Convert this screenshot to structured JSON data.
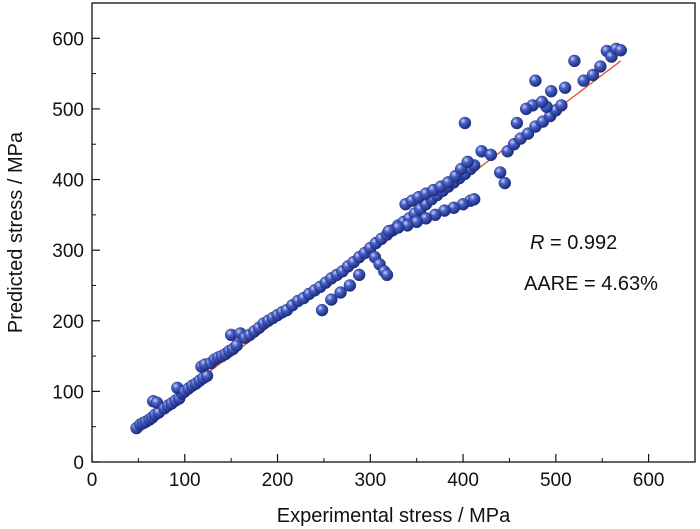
{
  "chart_data": {
    "type": "scatter",
    "title": "",
    "xlabel": "Experimental stress / MPa",
    "ylabel": "Predicted stress / MPa",
    "xlim": [
      0,
      650
    ],
    "ylim": [
      0,
      650
    ],
    "x_ticks": [
      0,
      100,
      200,
      300,
      400,
      500,
      600
    ],
    "y_ticks": [
      0,
      100,
      200,
      300,
      400,
      500,
      600
    ],
    "grid": false,
    "colors": {
      "points": "#2a3f9e",
      "fit_line": "#e8553a"
    },
    "annotations": [
      {
        "symbol": "R",
        "text": " = 0.992"
      },
      {
        "text": "AARE = 4.63%"
      }
    ],
    "series": [
      {
        "points": [
          [
            48,
            48
          ],
          [
            52,
            53
          ],
          [
            55,
            55
          ],
          [
            58,
            57
          ],
          [
            62,
            60
          ],
          [
            65,
            63
          ],
          [
            68,
            67
          ],
          [
            72,
            70
          ],
          [
            66,
            86
          ],
          [
            70,
            84
          ],
          [
            78,
            76
          ],
          [
            82,
            80
          ],
          [
            86,
            83
          ],
          [
            90,
            87
          ],
          [
            94,
            90
          ],
          [
            97,
            97
          ],
          [
            92,
            105
          ],
          [
            100,
            100
          ],
          [
            104,
            104
          ],
          [
            108,
            108
          ],
          [
            112,
            111
          ],
          [
            116,
            115
          ],
          [
            120,
            119
          ],
          [
            124,
            122
          ],
          [
            118,
            135
          ],
          [
            122,
            138
          ],
          [
            128,
            140
          ],
          [
            132,
            145
          ],
          [
            136,
            148
          ],
          [
            140,
            150
          ],
          [
            144,
            153
          ],
          [
            148,
            157
          ],
          [
            152,
            160
          ],
          [
            156,
            165
          ],
          [
            150,
            180
          ],
          [
            160,
            182
          ],
          [
            165,
            176
          ],
          [
            170,
            180
          ],
          [
            175,
            185
          ],
          [
            180,
            190
          ],
          [
            185,
            196
          ],
          [
            190,
            200
          ],
          [
            195,
            204
          ],
          [
            200,
            208
          ],
          [
            205,
            212
          ],
          [
            210,
            215
          ],
          [
            216,
            222
          ],
          [
            222,
            228
          ],
          [
            228,
            232
          ],
          [
            234,
            238
          ],
          [
            240,
            243
          ],
          [
            246,
            248
          ],
          [
            252,
            254
          ],
          [
            258,
            260
          ],
          [
            264,
            265
          ],
          [
            270,
            270
          ],
          [
            276,
            277
          ],
          [
            282,
            283
          ],
          [
            288,
            290
          ],
          [
            294,
            296
          ],
          [
            300,
            303
          ],
          [
            306,
            310
          ],
          [
            312,
            316
          ],
          [
            318,
            322
          ],
          [
            324,
            328
          ],
          [
            330,
            335
          ],
          [
            336,
            340
          ],
          [
            342,
            345
          ],
          [
            348,
            352
          ],
          [
            354,
            358
          ],
          [
            360,
            365
          ],
          [
            366,
            372
          ],
          [
            372,
            378
          ],
          [
            378,
            384
          ],
          [
            384,
            390
          ],
          [
            390,
            396
          ],
          [
            396,
            402
          ],
          [
            402,
            408
          ],
          [
            408,
            415
          ],
          [
            412,
            420
          ],
          [
            338,
            365
          ],
          [
            345,
            370
          ],
          [
            352,
            375
          ],
          [
            360,
            380
          ],
          [
            368,
            385
          ],
          [
            376,
            390
          ],
          [
            384,
            396
          ],
          [
            392,
            405
          ],
          [
            398,
            415
          ],
          [
            405,
            425
          ],
          [
            408,
            370
          ],
          [
            412,
            372
          ],
          [
            400,
            365
          ],
          [
            390,
            360
          ],
          [
            380,
            356
          ],
          [
            370,
            350
          ],
          [
            360,
            345
          ],
          [
            350,
            340
          ],
          [
            340,
            335
          ],
          [
            330,
            332
          ],
          [
            320,
            327
          ],
          [
            305,
            290
          ],
          [
            310,
            280
          ],
          [
            315,
            270
          ],
          [
            318,
            265
          ],
          [
            248,
            215
          ],
          [
            258,
            230
          ],
          [
            268,
            240
          ],
          [
            278,
            250
          ],
          [
            288,
            265
          ],
          [
            402,
            480
          ],
          [
            420,
            440
          ],
          [
            430,
            435
          ],
          [
            440,
            410
          ],
          [
            445,
            395
          ],
          [
            448,
            440
          ],
          [
            455,
            450
          ],
          [
            462,
            458
          ],
          [
            470,
            465
          ],
          [
            478,
            475
          ],
          [
            486,
            482
          ],
          [
            494,
            490
          ],
          [
            500,
            498
          ],
          [
            506,
            505
          ],
          [
            478,
            540
          ],
          [
            490,
            503
          ],
          [
            495,
            525
          ],
          [
            510,
            530
          ],
          [
            520,
            568
          ],
          [
            530,
            540
          ],
          [
            540,
            548
          ],
          [
            548,
            560
          ],
          [
            555,
            582
          ],
          [
            560,
            574
          ],
          [
            565,
            585
          ],
          [
            570,
            583
          ],
          [
            475,
            505
          ],
          [
            485,
            510
          ],
          [
            468,
            500
          ],
          [
            458,
            480
          ]
        ]
      }
    ],
    "fit_line": {
      "x": [
        48,
        570
      ],
      "y": [
        50,
        568
      ]
    }
  }
}
